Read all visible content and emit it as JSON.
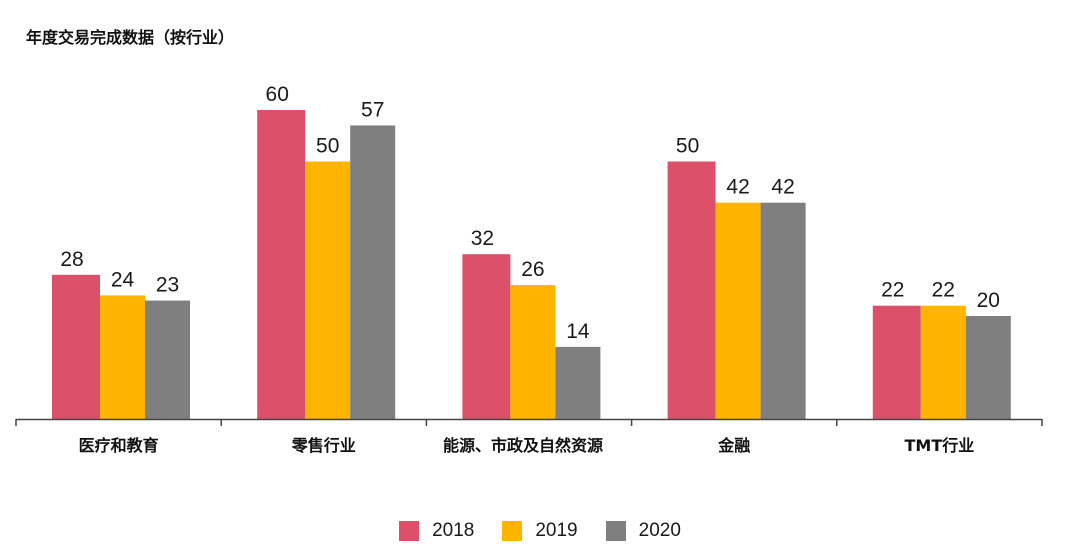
{
  "chart_data": {
    "type": "bar",
    "title": "年度交易完成数据（按行业）",
    "xlabel": "",
    "ylabel": "",
    "ylim": [
      0,
      60
    ],
    "grid": false,
    "legend_position": "bottom-center",
    "categories": [
      "医疗和教育",
      "零售行业",
      "能源、市政及自然资源",
      "金融",
      "TMT行业"
    ],
    "series": [
      {
        "name": "2018",
        "color": "#dc506a",
        "values": [
          28,
          60,
          32,
          50,
          22
        ]
      },
      {
        "name": "2019",
        "color": "#ffb400",
        "values": [
          24,
          50,
          26,
          42,
          22
        ]
      },
      {
        "name": "2020",
        "color": "#7f7f7f",
        "values": [
          23,
          57,
          14,
          42,
          20
        ]
      }
    ]
  }
}
